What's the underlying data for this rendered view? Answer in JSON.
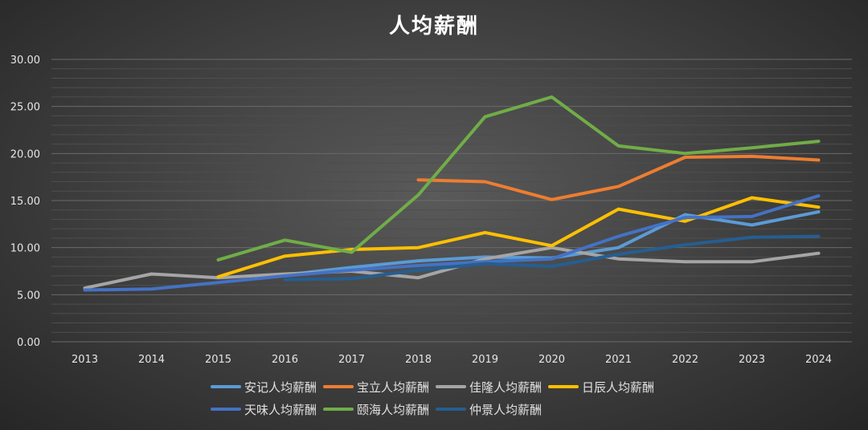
{
  "chart_data": {
    "type": "line",
    "title": "人均薪酬",
    "xlabel": "",
    "ylabel": "",
    "x": [
      "2013",
      "2014",
      "2015",
      "2016",
      "2017",
      "2018",
      "2019",
      "2020",
      "2021",
      "2022",
      "2023",
      "2024"
    ],
    "ylim": [
      0,
      30
    ],
    "yticks": [
      "0.00",
      "5.00",
      "10.00",
      "15.00",
      "20.00",
      "25.00",
      "30.00"
    ],
    "grid": true,
    "legend_position": "bottom",
    "series": [
      {
        "name": "安记人均薪酬",
        "color": "#5b9bd5",
        "values": [
          null,
          null,
          null,
          7.1,
          7.9,
          8.6,
          9.0,
          8.9,
          10.0,
          13.5,
          12.4,
          13.8
        ]
      },
      {
        "name": "宝立人均薪酬",
        "color": "#ed7d31",
        "values": [
          null,
          null,
          null,
          null,
          null,
          17.2,
          17.0,
          15.1,
          16.5,
          19.6,
          19.7,
          19.3
        ]
      },
      {
        "name": "佳隆人均薪酬",
        "color": "#a5a5a5",
        "values": [
          5.7,
          7.2,
          6.8,
          7.2,
          7.5,
          6.8,
          8.8,
          10.0,
          8.8,
          8.5,
          8.5,
          9.4
        ]
      },
      {
        "name": "日辰人均薪酬",
        "color": "#ffc000",
        "values": [
          null,
          null,
          6.9,
          9.1,
          9.8,
          10.0,
          11.6,
          10.2,
          14.1,
          12.8,
          15.3,
          14.3
        ]
      },
      {
        "name": "天味人均薪酬",
        "color": "#4472c4",
        "values": [
          5.5,
          5.6,
          6.3,
          7.0,
          7.6,
          8.1,
          8.5,
          8.8,
          11.2,
          13.2,
          13.3,
          15.5
        ]
      },
      {
        "name": "颐海人均薪酬",
        "color": "#70ad47",
        "values": [
          null,
          null,
          8.7,
          10.8,
          9.5,
          15.6,
          23.9,
          26.0,
          20.8,
          20.0,
          20.6,
          21.3
        ]
      },
      {
        "name": "仲景人均薪酬",
        "color": "#255e91",
        "values": [
          null,
          null,
          null,
          6.6,
          6.7,
          7.6,
          8.3,
          8.0,
          9.3,
          10.3,
          11.1,
          11.2
        ]
      }
    ]
  }
}
